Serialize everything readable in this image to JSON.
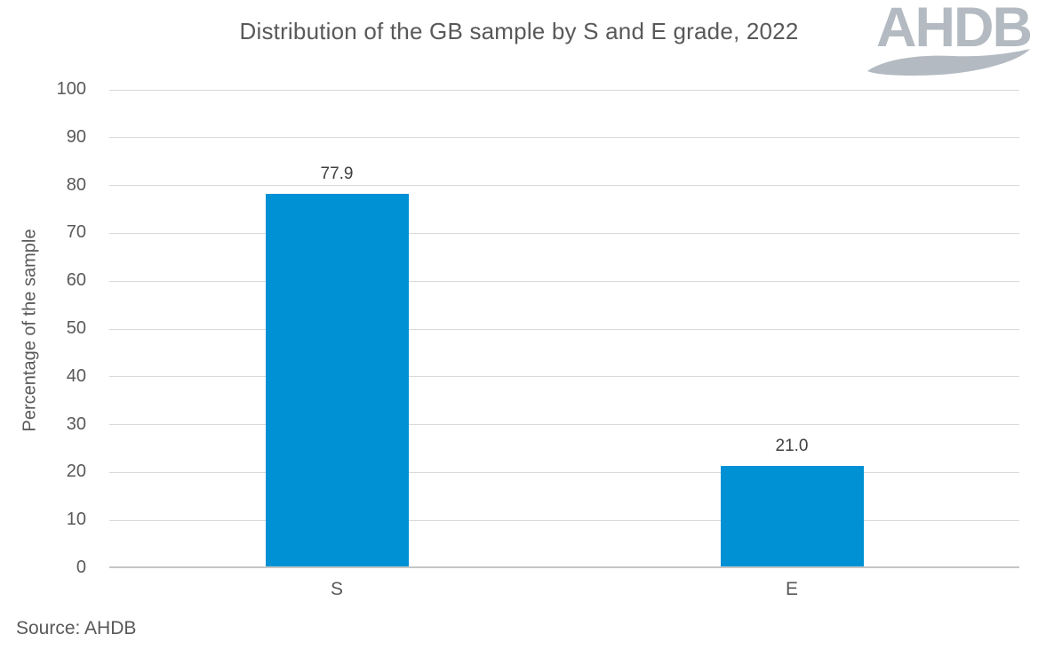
{
  "title": "Distribution of the GB sample by S and E grade, 2022",
  "logo": {
    "text": "AHDB"
  },
  "source_note": "Source: AHDB",
  "chart_data": {
    "type": "bar",
    "title": "Distribution of the GB sample by S and E grade, 2022",
    "categories": [
      "S",
      "E"
    ],
    "values": [
      77.9,
      21.0
    ],
    "value_labels": [
      "77.9",
      "21.0"
    ],
    "xlabel": "",
    "ylabel": "Percentage of the sample",
    "ylim": [
      0,
      100
    ],
    "ytick_step": 10,
    "ytick_labels": [
      "0",
      "10",
      "20",
      "30",
      "40",
      "50",
      "60",
      "70",
      "80",
      "90",
      "100"
    ],
    "grid": true,
    "legend": false,
    "colors": {
      "bar": "#0091d5",
      "gridline": "#d9d9d9",
      "axis_line": "#c6c6c6",
      "text": "#595959",
      "data_label": "#404040",
      "logo": "#b3bac1"
    }
  }
}
